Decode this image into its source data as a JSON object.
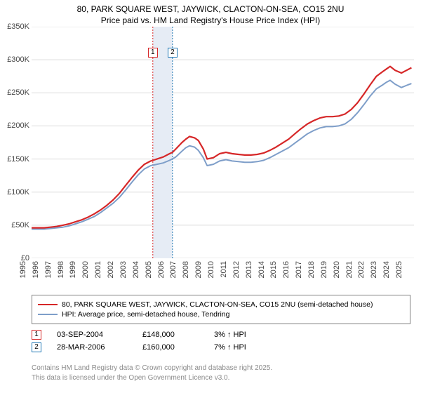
{
  "title": {
    "line1": "80, PARK SQUARE WEST, JAYWICK, CLACTON-ON-SEA, CO15 2NU",
    "line2": "Price paid vs. HM Land Registry's House Price Index (HPI)",
    "fontsize": 12,
    "color": "#000000"
  },
  "chart": {
    "type": "line",
    "background_color": "#ffffff",
    "grid_color": "#dcdcdc",
    "x": {
      "min": 1995,
      "max": 2025.5,
      "ticks": [
        1995,
        1996,
        1997,
        1998,
        1999,
        2000,
        2001,
        2002,
        2003,
        2004,
        2005,
        2006,
        2007,
        2008,
        2009,
        2010,
        2011,
        2012,
        2013,
        2014,
        2015,
        2016,
        2017,
        2018,
        2019,
        2020,
        2021,
        2022,
        2023,
        2024,
        2025
      ],
      "label_fontsize": 11,
      "label_rotation": -90
    },
    "y": {
      "min": 0,
      "max": 350000,
      "ticks": [
        0,
        50000,
        100000,
        150000,
        200000,
        250000,
        300000,
        350000
      ],
      "tick_labels": [
        "£0",
        "£50K",
        "£100K",
        "£150K",
        "£200K",
        "£250K",
        "£300K",
        "£350K"
      ],
      "label_fontsize": 11
    },
    "sale_band": {
      "from": 2004.67,
      "to": 2006.24,
      "fill": "#e6ecf5"
    },
    "sale_markers": [
      {
        "n": "1",
        "year": 2004.67,
        "color": "#d62728"
      },
      {
        "n": "2",
        "year": 2006.24,
        "color": "#1f77b4"
      }
    ],
    "series": [
      {
        "id": "property",
        "name": "80, PARK SQUARE WEST, JAYWICK, CLACTON-ON-SEA, CO15 2NU (semi-detached house)",
        "color": "#d62728",
        "line_width": 2.2,
        "points": [
          [
            1995.0,
            46000
          ],
          [
            1995.5,
            46000
          ],
          [
            1996.0,
            46000
          ],
          [
            1996.5,
            47000
          ],
          [
            1997.0,
            48000
          ],
          [
            1997.5,
            50000
          ],
          [
            1998.0,
            52000
          ],
          [
            1998.5,
            55000
          ],
          [
            1999.0,
            58000
          ],
          [
            1999.5,
            62000
          ],
          [
            2000.0,
            67000
          ],
          [
            2000.5,
            73000
          ],
          [
            2001.0,
            80000
          ],
          [
            2001.5,
            88000
          ],
          [
            2002.0,
            98000
          ],
          [
            2002.5,
            110000
          ],
          [
            2003.0,
            122000
          ],
          [
            2003.5,
            133000
          ],
          [
            2004.0,
            142000
          ],
          [
            2004.5,
            147000
          ],
          [
            2004.67,
            148000
          ],
          [
            2005.0,
            150000
          ],
          [
            2005.5,
            153000
          ],
          [
            2006.0,
            158000
          ],
          [
            2006.24,
            160000
          ],
          [
            2006.5,
            165000
          ],
          [
            2007.0,
            175000
          ],
          [
            2007.3,
            180000
          ],
          [
            2007.6,
            184000
          ],
          [
            2008.0,
            182000
          ],
          [
            2008.3,
            178000
          ],
          [
            2008.7,
            165000
          ],
          [
            2009.0,
            150000
          ],
          [
            2009.5,
            152000
          ],
          [
            2010.0,
            158000
          ],
          [
            2010.5,
            160000
          ],
          [
            2011.0,
            158000
          ],
          [
            2011.5,
            157000
          ],
          [
            2012.0,
            156000
          ],
          [
            2012.5,
            156000
          ],
          [
            2013.0,
            157000
          ],
          [
            2013.5,
            159000
          ],
          [
            2014.0,
            163000
          ],
          [
            2014.5,
            168000
          ],
          [
            2015.0,
            174000
          ],
          [
            2015.5,
            180000
          ],
          [
            2016.0,
            188000
          ],
          [
            2016.5,
            196000
          ],
          [
            2017.0,
            203000
          ],
          [
            2017.5,
            208000
          ],
          [
            2018.0,
            212000
          ],
          [
            2018.5,
            214000
          ],
          [
            2019.0,
            214000
          ],
          [
            2019.5,
            215000
          ],
          [
            2020.0,
            218000
          ],
          [
            2020.5,
            225000
          ],
          [
            2021.0,
            235000
          ],
          [
            2021.5,
            248000
          ],
          [
            2022.0,
            262000
          ],
          [
            2022.5,
            275000
          ],
          [
            2023.0,
            282000
          ],
          [
            2023.3,
            286000
          ],
          [
            2023.6,
            290000
          ],
          [
            2024.0,
            284000
          ],
          [
            2024.5,
            280000
          ],
          [
            2025.0,
            285000
          ],
          [
            2025.3,
            288000
          ]
        ]
      },
      {
        "id": "hpi",
        "name": "HPI: Average price, semi-detached house, Tendring",
        "color": "#7e9ec9",
        "line_width": 2.0,
        "points": [
          [
            1995.0,
            44000
          ],
          [
            1995.5,
            44000
          ],
          [
            1996.0,
            44000
          ],
          [
            1996.5,
            45000
          ],
          [
            1997.0,
            46000
          ],
          [
            1997.5,
            47000
          ],
          [
            1998.0,
            49000
          ],
          [
            1998.5,
            52000
          ],
          [
            1999.0,
            55000
          ],
          [
            1999.5,
            59000
          ],
          [
            2000.0,
            63000
          ],
          [
            2000.5,
            69000
          ],
          [
            2001.0,
            76000
          ],
          [
            2001.5,
            83000
          ],
          [
            2002.0,
            92000
          ],
          [
            2002.5,
            103000
          ],
          [
            2003.0,
            115000
          ],
          [
            2003.5,
            126000
          ],
          [
            2004.0,
            135000
          ],
          [
            2004.5,
            140000
          ],
          [
            2005.0,
            142000
          ],
          [
            2005.5,
            144000
          ],
          [
            2006.0,
            148000
          ],
          [
            2006.5,
            153000
          ],
          [
            2007.0,
            162000
          ],
          [
            2007.3,
            167000
          ],
          [
            2007.6,
            170000
          ],
          [
            2008.0,
            168000
          ],
          [
            2008.3,
            163000
          ],
          [
            2008.7,
            152000
          ],
          [
            2009.0,
            140000
          ],
          [
            2009.5,
            142000
          ],
          [
            2010.0,
            147000
          ],
          [
            2010.5,
            149000
          ],
          [
            2011.0,
            147000
          ],
          [
            2011.5,
            146000
          ],
          [
            2012.0,
            145000
          ],
          [
            2012.5,
            145000
          ],
          [
            2013.0,
            146000
          ],
          [
            2013.5,
            148000
          ],
          [
            2014.0,
            152000
          ],
          [
            2014.5,
            157000
          ],
          [
            2015.0,
            162000
          ],
          [
            2015.5,
            167000
          ],
          [
            2016.0,
            174000
          ],
          [
            2016.5,
            181000
          ],
          [
            2017.0,
            188000
          ],
          [
            2017.5,
            193000
          ],
          [
            2018.0,
            197000
          ],
          [
            2018.5,
            199000
          ],
          [
            2019.0,
            199000
          ],
          [
            2019.5,
            200000
          ],
          [
            2020.0,
            203000
          ],
          [
            2020.5,
            210000
          ],
          [
            2021.0,
            220000
          ],
          [
            2021.5,
            232000
          ],
          [
            2022.0,
            245000
          ],
          [
            2022.5,
            256000
          ],
          [
            2023.0,
            262000
          ],
          [
            2023.3,
            266000
          ],
          [
            2023.6,
            269000
          ],
          [
            2024.0,
            263000
          ],
          [
            2024.5,
            258000
          ],
          [
            2025.0,
            262000
          ],
          [
            2025.3,
            264000
          ]
        ]
      }
    ]
  },
  "legend": {
    "border_color": "#808080",
    "fontsize": 10.5
  },
  "sales": [
    {
      "n": "1",
      "color": "#d62728",
      "date": "03-SEP-2004",
      "price": "£148,000",
      "delta": "3% ↑ HPI"
    },
    {
      "n": "2",
      "color": "#1f77b4",
      "date": "28-MAR-2006",
      "price": "£160,000",
      "delta": "7% ↑ HPI"
    }
  ],
  "credits": {
    "line1": "Contains HM Land Registry data © Crown copyright and database right 2025.",
    "line2": "This data is licensed under the Open Government Licence v3.0.",
    "color": "#8a8a8a",
    "fontsize": 10
  }
}
